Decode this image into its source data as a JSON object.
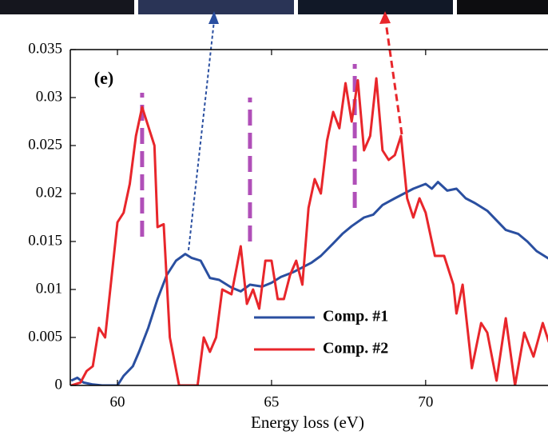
{
  "chart_data": {
    "type": "line",
    "annotation": "(e)",
    "xlabel": "Energy loss (eV)",
    "xlim": [
      58.47,
      73.97
    ],
    "xticks": [
      60,
      65,
      70
    ],
    "ylim": [
      0,
      0.035
    ],
    "yticks": [
      0,
      0.005,
      0.01,
      0.015,
      0.02,
      0.025,
      0.03,
      0.035
    ],
    "legend": "lower-middle",
    "series": [
      {
        "name": "Comp. #1",
        "color": "#2a4fa0",
        "x": [
          58.5,
          58.7,
          58.9,
          59.2,
          59.5,
          60,
          60.2,
          60.5,
          60.7,
          61,
          61.3,
          61.6,
          61.9,
          62.2,
          62.4,
          62.7,
          63,
          63.3,
          63.7,
          64,
          64.3,
          64.7,
          65,
          65.3,
          65.7,
          66,
          66.3,
          66.6,
          67,
          67.3,
          67.6,
          68,
          68.3,
          68.6,
          69,
          69.3,
          69.6,
          70,
          70.2,
          70.4,
          70.7,
          71,
          71.3,
          71.6,
          72,
          72.3,
          72.6,
          73,
          73.3,
          73.6,
          74
        ],
        "values": [
          0.0005,
          0.0008,
          0.0003,
          0.0001,
          0,
          0,
          0.001,
          0.002,
          0.0035,
          0.006,
          0.009,
          0.0115,
          0.013,
          0.0137,
          0.0133,
          0.013,
          0.0112,
          0.011,
          0.0102,
          0.0098,
          0.0105,
          0.0103,
          0.0107,
          0.0113,
          0.0118,
          0.0123,
          0.0128,
          0.0135,
          0.0148,
          0.0158,
          0.0166,
          0.0175,
          0.0178,
          0.0188,
          0.0195,
          0.02,
          0.0205,
          0.021,
          0.0205,
          0.0212,
          0.0203,
          0.0205,
          0.0195,
          0.019,
          0.0182,
          0.0172,
          0.0162,
          0.0158,
          0.015,
          0.014,
          0.0132
        ]
      },
      {
        "name": "Comp. #2",
        "color": "#e8262b",
        "x": [
          58.5,
          58.8,
          59,
          59.2,
          59.4,
          59.6,
          59.8,
          60,
          60.2,
          60.4,
          60.6,
          60.8,
          61,
          61.2,
          61.3,
          61.5,
          61.7,
          62,
          62.3,
          62.6,
          62.8,
          63,
          63.2,
          63.4,
          63.7,
          64,
          64.2,
          64.4,
          64.6,
          64.8,
          65,
          65.2,
          65.4,
          65.6,
          65.8,
          66,
          66.2,
          66.4,
          66.6,
          66.8,
          67,
          67.2,
          67.4,
          67.6,
          67.8,
          68,
          68.2,
          68.4,
          68.6,
          68.8,
          69,
          69.2,
          69.4,
          69.6,
          69.8,
          70,
          70.3,
          70.6,
          70.9,
          71,
          71.2,
          71.5,
          71.8,
          72,
          72.3,
          72.6,
          72.9,
          73.2,
          73.5,
          73.8,
          74
        ],
        "values": [
          0,
          0.0003,
          0.0015,
          0.002,
          0.006,
          0.005,
          0.011,
          0.017,
          0.018,
          0.021,
          0.026,
          0.029,
          0.027,
          0.025,
          0.0165,
          0.0168,
          0.005,
          0,
          0,
          0,
          0.005,
          0.0035,
          0.005,
          0.01,
          0.0095,
          0.0145,
          0.0085,
          0.01,
          0.008,
          0.013,
          0.013,
          0.009,
          0.009,
          0.0115,
          0.013,
          0.0105,
          0.0185,
          0.0215,
          0.02,
          0.0255,
          0.0285,
          0.0268,
          0.0315,
          0.0275,
          0.0318,
          0.0245,
          0.026,
          0.032,
          0.0245,
          0.0235,
          0.024,
          0.026,
          0.0195,
          0.0175,
          0.0195,
          0.018,
          0.0135,
          0.0135,
          0.0105,
          0.0075,
          0.0105,
          0.0018,
          0.0065,
          0.0055,
          0.0005,
          0.007,
          0,
          0.0055,
          0.003,
          0.0065,
          0.0045
        ]
      }
    ],
    "markers": [
      {
        "x": 60.8,
        "y": [
          0.0155,
          0.0305
        ],
        "color": "#b04fb8"
      },
      {
        "x": 64.3,
        "y": [
          0.015,
          0.03
        ],
        "color": "#b04fb8"
      },
      {
        "x": 67.7,
        "y": [
          0.0185,
          0.0335
        ],
        "color": "#b04fb8"
      }
    ]
  }
}
